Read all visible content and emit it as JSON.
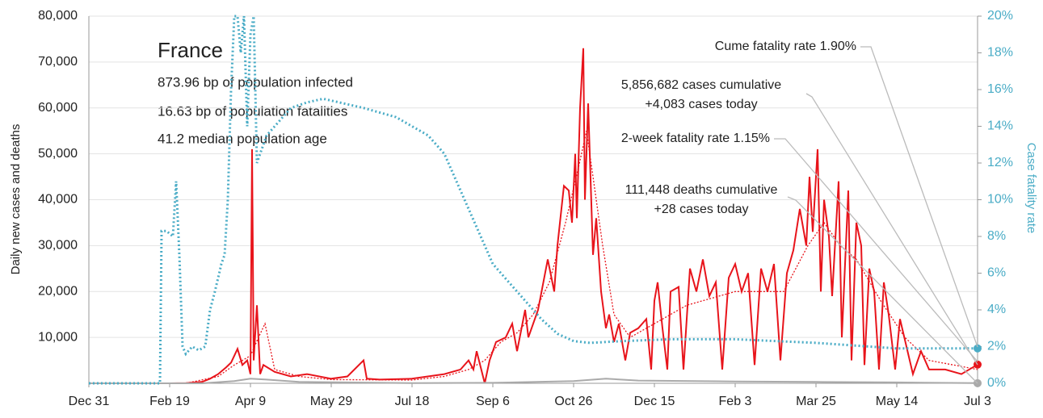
{
  "chart_data": {
    "type": "line",
    "title": "France",
    "subtitle_lines": [
      "873.96 bp of population infected",
      "16.63 bp of population fatalities",
      "41.2 median population age"
    ],
    "ylabel": "Daily new cases and deaths",
    "y2label": "Case fatality rate",
    "xlim": [
      0,
      550
    ],
    "xticks": [
      {
        "value": 0,
        "label": "Dec 31"
      },
      {
        "value": 50,
        "label": "Feb 19"
      },
      {
        "value": 100,
        "label": "Apr 9"
      },
      {
        "value": 150,
        "label": "May 29"
      },
      {
        "value": 200,
        "label": "Jul 18"
      },
      {
        "value": 250,
        "label": "Sep 6"
      },
      {
        "value": 300,
        "label": "Oct 26"
      },
      {
        "value": 350,
        "label": "Dec 15"
      },
      {
        "value": 400,
        "label": "Feb 3"
      },
      {
        "value": 450,
        "label": "Mar 25"
      },
      {
        "value": 500,
        "label": "May 14"
      },
      {
        "value": 550,
        "label": "Jul 3"
      }
    ],
    "ylim": [
      0,
      80000
    ],
    "yticks": [
      {
        "value": 10000,
        "label": "10,000"
      },
      {
        "value": 20000,
        "label": "20,000"
      },
      {
        "value": 30000,
        "label": "30,000"
      },
      {
        "value": 40000,
        "label": "40,000"
      },
      {
        "value": 50000,
        "label": "50,000"
      },
      {
        "value": 60000,
        "label": "60,000"
      },
      {
        "value": 70000,
        "label": "70,000"
      },
      {
        "value": 80000,
        "label": "80,000"
      }
    ],
    "y2lim": [
      0,
      20
    ],
    "y2ticks": [
      {
        "value": 0,
        "label": "0%"
      },
      {
        "value": 2,
        "label": "2%"
      },
      {
        "value": 4,
        "label": "4%"
      },
      {
        "value": 6,
        "label": "6%"
      },
      {
        "value": 8,
        "label": "8%"
      },
      {
        "value": 10,
        "label": "10%"
      },
      {
        "value": 12,
        "label": "12%"
      },
      {
        "value": 14,
        "label": "14%"
      },
      {
        "value": 16,
        "label": "16%"
      },
      {
        "value": 18,
        "label": "18%"
      },
      {
        "value": 20,
        "label": "20%"
      }
    ],
    "grid": true,
    "series": [
      {
        "color": "#e8141b",
        "style": "solid",
        "axis": "y",
        "x": [
          0,
          50,
          60,
          70,
          75,
          80,
          85,
          88,
          92,
          95,
          98,
          100,
          101,
          102,
          104,
          106,
          108,
          115,
          125,
          135,
          150,
          160,
          170,
          172,
          180,
          200,
          220,
          230,
          235,
          238,
          240,
          245,
          248,
          252,
          258,
          262,
          265,
          270,
          272,
          278,
          284,
          288,
          290,
          294,
          297,
          299,
          301,
          302,
          304,
          306,
          307,
          309,
          312,
          314,
          317,
          320,
          322,
          325,
          328,
          332,
          335,
          340,
          345,
          348,
          350,
          352,
          355,
          358,
          360,
          365,
          368,
          372,
          376,
          380,
          384,
          388,
          392,
          396,
          400,
          404,
          408,
          412,
          416,
          420,
          424,
          428,
          432,
          436,
          440,
          444,
          446,
          448,
          451,
          453,
          455,
          458,
          460,
          464,
          466,
          470,
          472,
          475,
          478,
          480,
          483,
          486,
          489,
          492,
          495,
          499,
          502,
          506,
          510,
          515,
          520,
          530,
          540,
          550
        ],
        "values": [
          0,
          0,
          50,
          300,
          1000,
          2000,
          3500,
          4500,
          7500,
          4000,
          5000,
          2000,
          51000,
          5000,
          17000,
          2000,
          4000,
          2500,
          1500,
          2000,
          1000,
          1500,
          5000,
          1000,
          800,
          1000,
          2000,
          3000,
          5000,
          3000,
          7000,
          0,
          5000,
          9000,
          10000,
          13000,
          7000,
          16000,
          10000,
          16000,
          27000,
          20000,
          30000,
          43000,
          42000,
          35000,
          50000,
          36000,
          60000,
          73000,
          40000,
          61000,
          28000,
          36000,
          20000,
          12000,
          15000,
          9000,
          13000,
          5000,
          11000,
          12000,
          14000,
          3000,
          18000,
          22000,
          12000,
          3000,
          20000,
          21000,
          3000,
          25000,
          20000,
          27000,
          19000,
          22000,
          3000,
          23000,
          26000,
          20000,
          24000,
          4000,
          25000,
          20000,
          26000,
          5000,
          24000,
          29000,
          38000,
          30000,
          45000,
          33000,
          51000,
          20000,
          40000,
          32000,
          19000,
          44000,
          10000,
          42000,
          5000,
          35000,
          30000,
          4000,
          25000,
          20000,
          3000,
          22000,
          15000,
          3000,
          14000,
          8000,
          2000,
          7000,
          3000,
          3000,
          2000,
          4083
        ]
      },
      {
        "color": "#e8141b",
        "style": "dotted",
        "axis": "y",
        "x": [
          0,
          60,
          80,
          90,
          100,
          105,
          109,
          115,
          130,
          150,
          200,
          220,
          235,
          245,
          255,
          265,
          275,
          285,
          295,
          303,
          308,
          312,
          318,
          325,
          335,
          350,
          370,
          400,
          430,
          445,
          455,
          465,
          475,
          490,
          505,
          520,
          550
        ],
        "values": [
          0,
          0,
          1500,
          4000,
          6000,
          10000,
          13000,
          3000,
          1500,
          800,
          700,
          1500,
          3000,
          5000,
          9000,
          11000,
          15000,
          22000,
          35000,
          47000,
          55000,
          45000,
          30000,
          15000,
          10000,
          13000,
          17000,
          20000,
          20000,
          30000,
          35000,
          30000,
          27000,
          18000,
          10000,
          5000,
          3000
        ]
      },
      {
        "color": "#aaaaaa",
        "style": "solid",
        "axis": "y",
        "x": [
          0,
          70,
          90,
          100,
          110,
          130,
          200,
          250,
          300,
          320,
          340,
          400,
          450,
          500,
          550
        ],
        "values": [
          0,
          0,
          500,
          1000,
          800,
          300,
          50,
          100,
          500,
          1000,
          600,
          400,
          300,
          200,
          28
        ]
      },
      {
        "color": "#4aacc6",
        "style": "dotted",
        "axis": "y2",
        "x": [
          0,
          44,
          45,
          48,
          52,
          54,
          56,
          58,
          60,
          64,
          68,
          72,
          75,
          78,
          82,
          84,
          86,
          88,
          90,
          92,
          94,
          96,
          98,
          100,
          102,
          104,
          106,
          110,
          115,
          125,
          135,
          145,
          155,
          170,
          190,
          210,
          220,
          230,
          240,
          250,
          260,
          270,
          280,
          290,
          300,
          310,
          330,
          360,
          400,
          450,
          500,
          550
        ],
        "values": [
          0,
          0,
          8.3,
          8.3,
          8,
          11,
          7,
          2,
          1.6,
          2,
          1.8,
          2,
          4,
          5,
          6.5,
          7,
          10,
          16,
          20,
          20,
          18,
          20,
          14,
          19,
          20,
          12,
          12.5,
          13.5,
          14,
          15,
          15.3,
          15.5,
          15.3,
          15,
          14.5,
          13.5,
          12.5,
          10.5,
          8.5,
          6.5,
          5.5,
          4.5,
          3.5,
          2.7,
          2.3,
          2.2,
          2.3,
          2.4,
          2.4,
          2.2,
          1.9,
          1.9
        ]
      }
    ],
    "annotations": [
      "Cume fatality rate 1.90%",
      "5,856,682 cases cumulative",
      "+4,083 cases today",
      "2-week fatality rate 1.15%",
      "111,448 deaths cumulative",
      "+28 cases today"
    ]
  }
}
